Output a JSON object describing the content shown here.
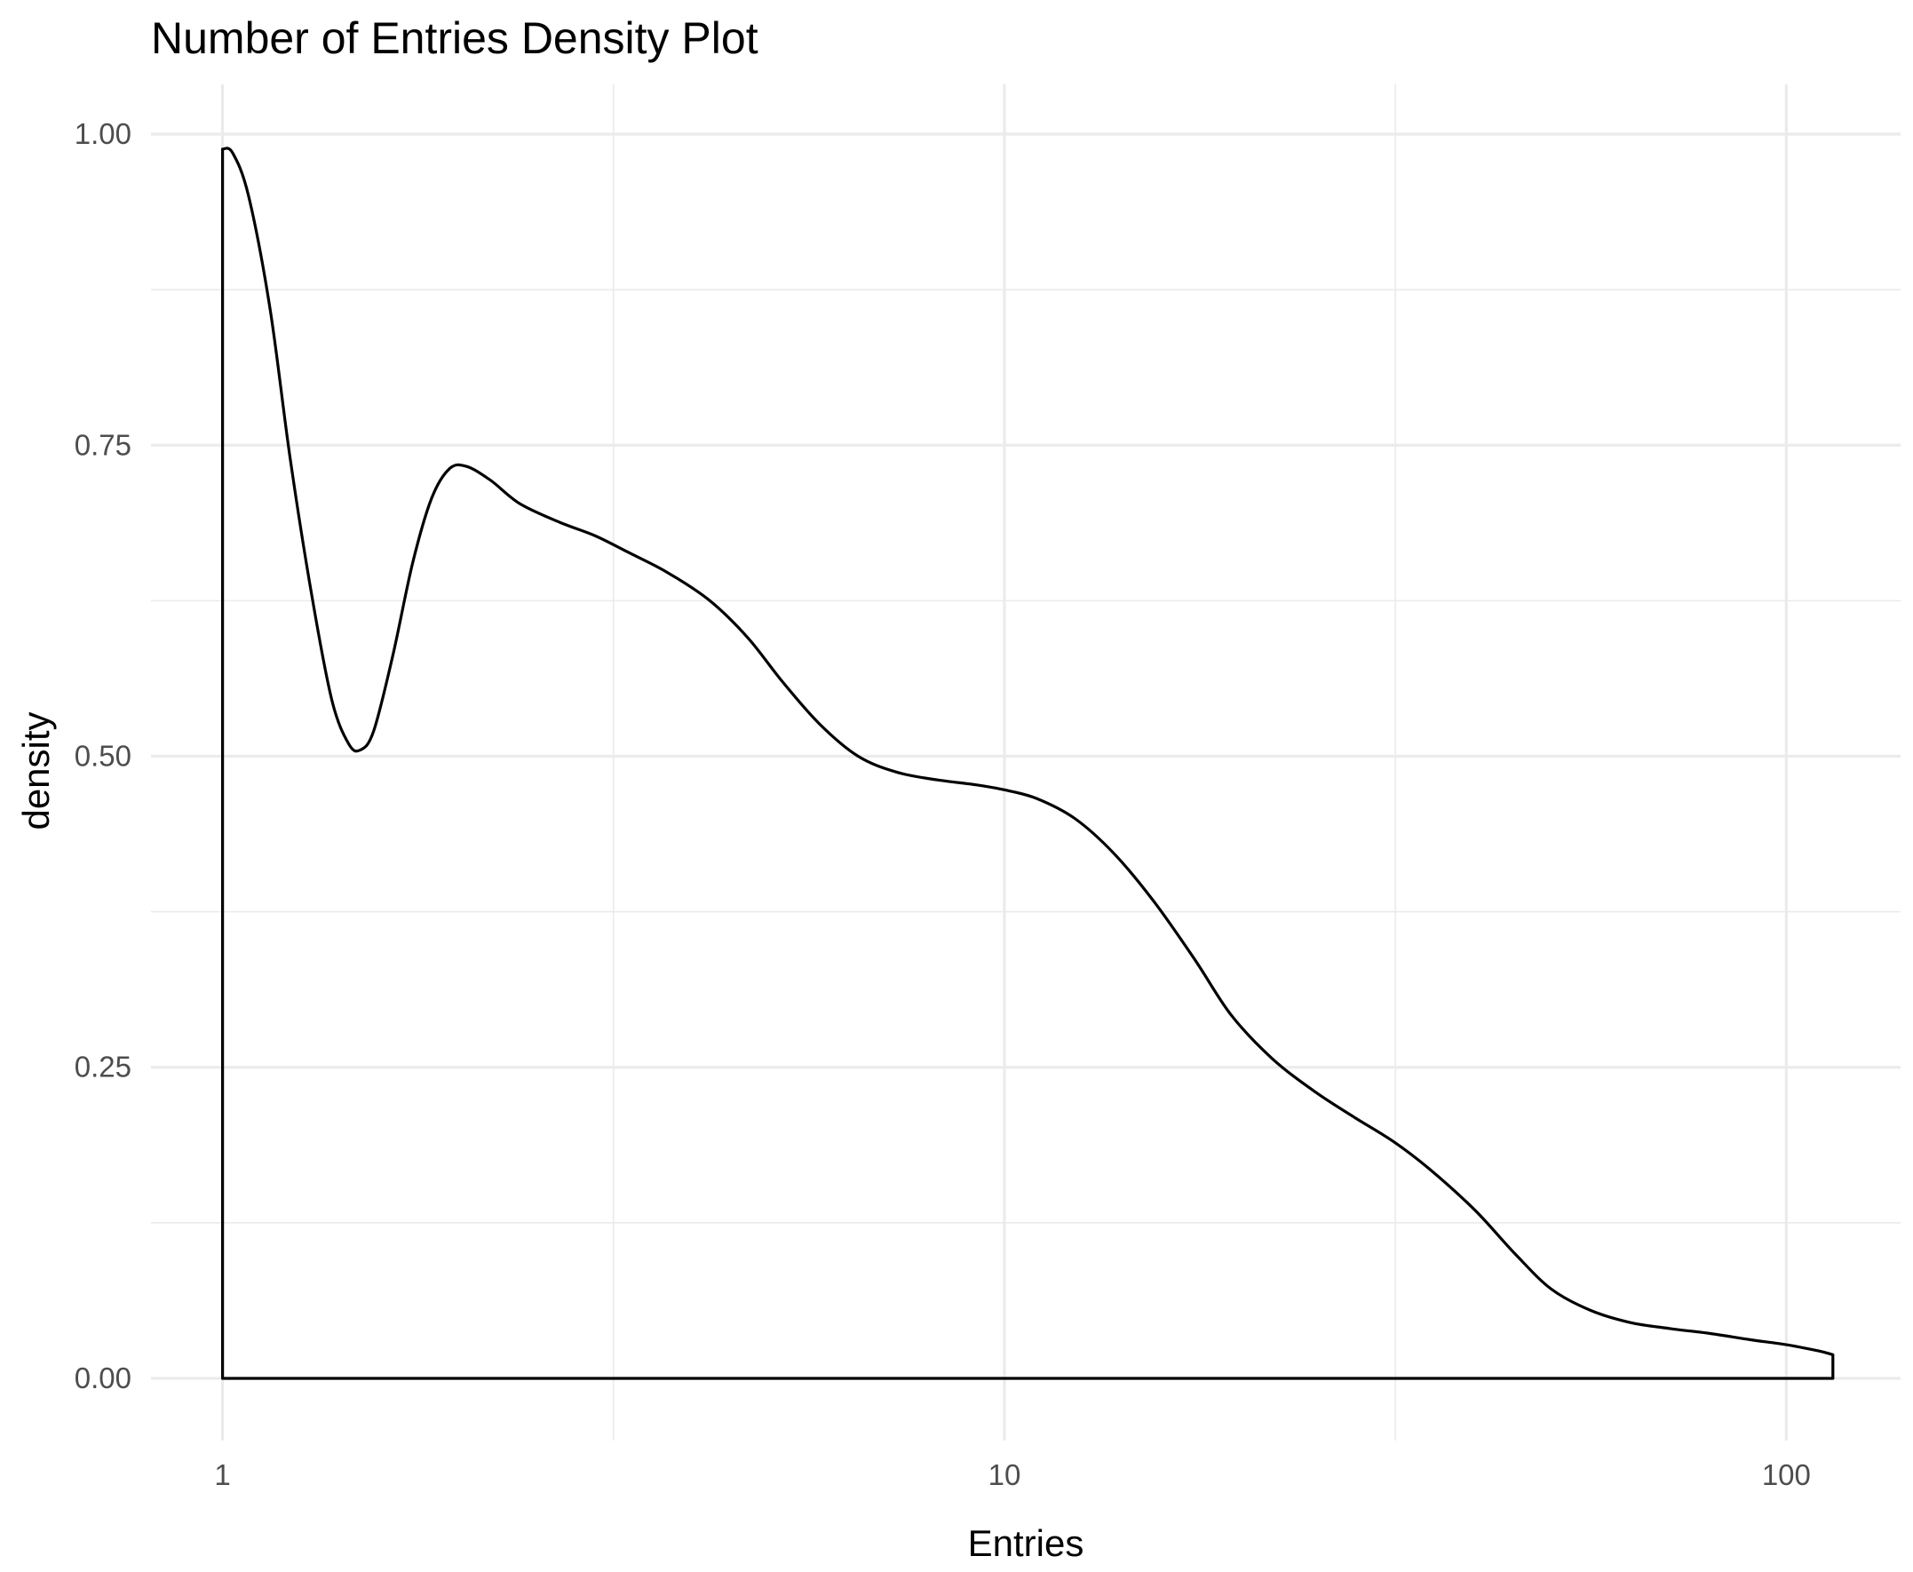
{
  "chart_data": {
    "type": "area",
    "title": "Number of Entries Density Plot",
    "xlabel": "Entries",
    "ylabel": "density",
    "x_scale": "log10",
    "xlim": [
      0.81,
      140
    ],
    "ylim": [
      -0.05,
      1.04
    ],
    "x_ticks": [
      {
        "value": 1,
        "label": "1"
      },
      {
        "value": 10,
        "label": "10"
      },
      {
        "value": 100,
        "label": "100"
      }
    ],
    "x_minor_ticks": [
      3.162,
      31.62
    ],
    "y_ticks": [
      {
        "value": 0,
        "label": "0.00"
      },
      {
        "value": 0.25,
        "label": "0.25"
      },
      {
        "value": 0.5,
        "label": "0.50"
      },
      {
        "value": 0.75,
        "label": "0.75"
      },
      {
        "value": 1,
        "label": "1.00"
      }
    ],
    "y_minor_ticks": [
      0.125,
      0.375,
      0.625,
      0.875
    ],
    "grid": true,
    "fill": "none",
    "line_color": "#000000",
    "series": [
      {
        "x": [
          1.0,
          1.03,
          1.08,
          1.15,
          1.22,
          1.3,
          1.38,
          1.45,
          1.5,
          1.56,
          1.65,
          1.75,
          1.85,
          1.95,
          2.05,
          2.2,
          2.4,
          2.7,
          3.0,
          3.3,
          3.7,
          4.2,
          4.7,
          5.2,
          5.8,
          6.5,
          7.3,
          8.2,
          9.2,
          10.0,
          11.0,
          12.3,
          13.8,
          15.5,
          17.5,
          19.5,
          22.0,
          25.0,
          28.0,
          31.5,
          35.0,
          40.0,
          45.0,
          50.0,
          56.0,
          63.0,
          71.0,
          80.0,
          90.0,
          100.0,
          110.0,
          114.7
        ],
        "y": [
          0.988,
          0.985,
          0.95,
          0.86,
          0.74,
          0.63,
          0.545,
          0.51,
          0.505,
          0.52,
          0.58,
          0.655,
          0.707,
          0.731,
          0.733,
          0.722,
          0.703,
          0.688,
          0.677,
          0.664,
          0.648,
          0.625,
          0.595,
          0.56,
          0.526,
          0.5,
          0.487,
          0.481,
          0.477,
          0.473,
          0.466,
          0.45,
          0.422,
          0.384,
          0.337,
          0.292,
          0.257,
          0.23,
          0.21,
          0.19,
          0.168,
          0.135,
          0.1,
          0.072,
          0.055,
          0.045,
          0.04,
          0.036,
          0.031,
          0.027,
          0.022,
          0.019
        ]
      }
    ]
  }
}
